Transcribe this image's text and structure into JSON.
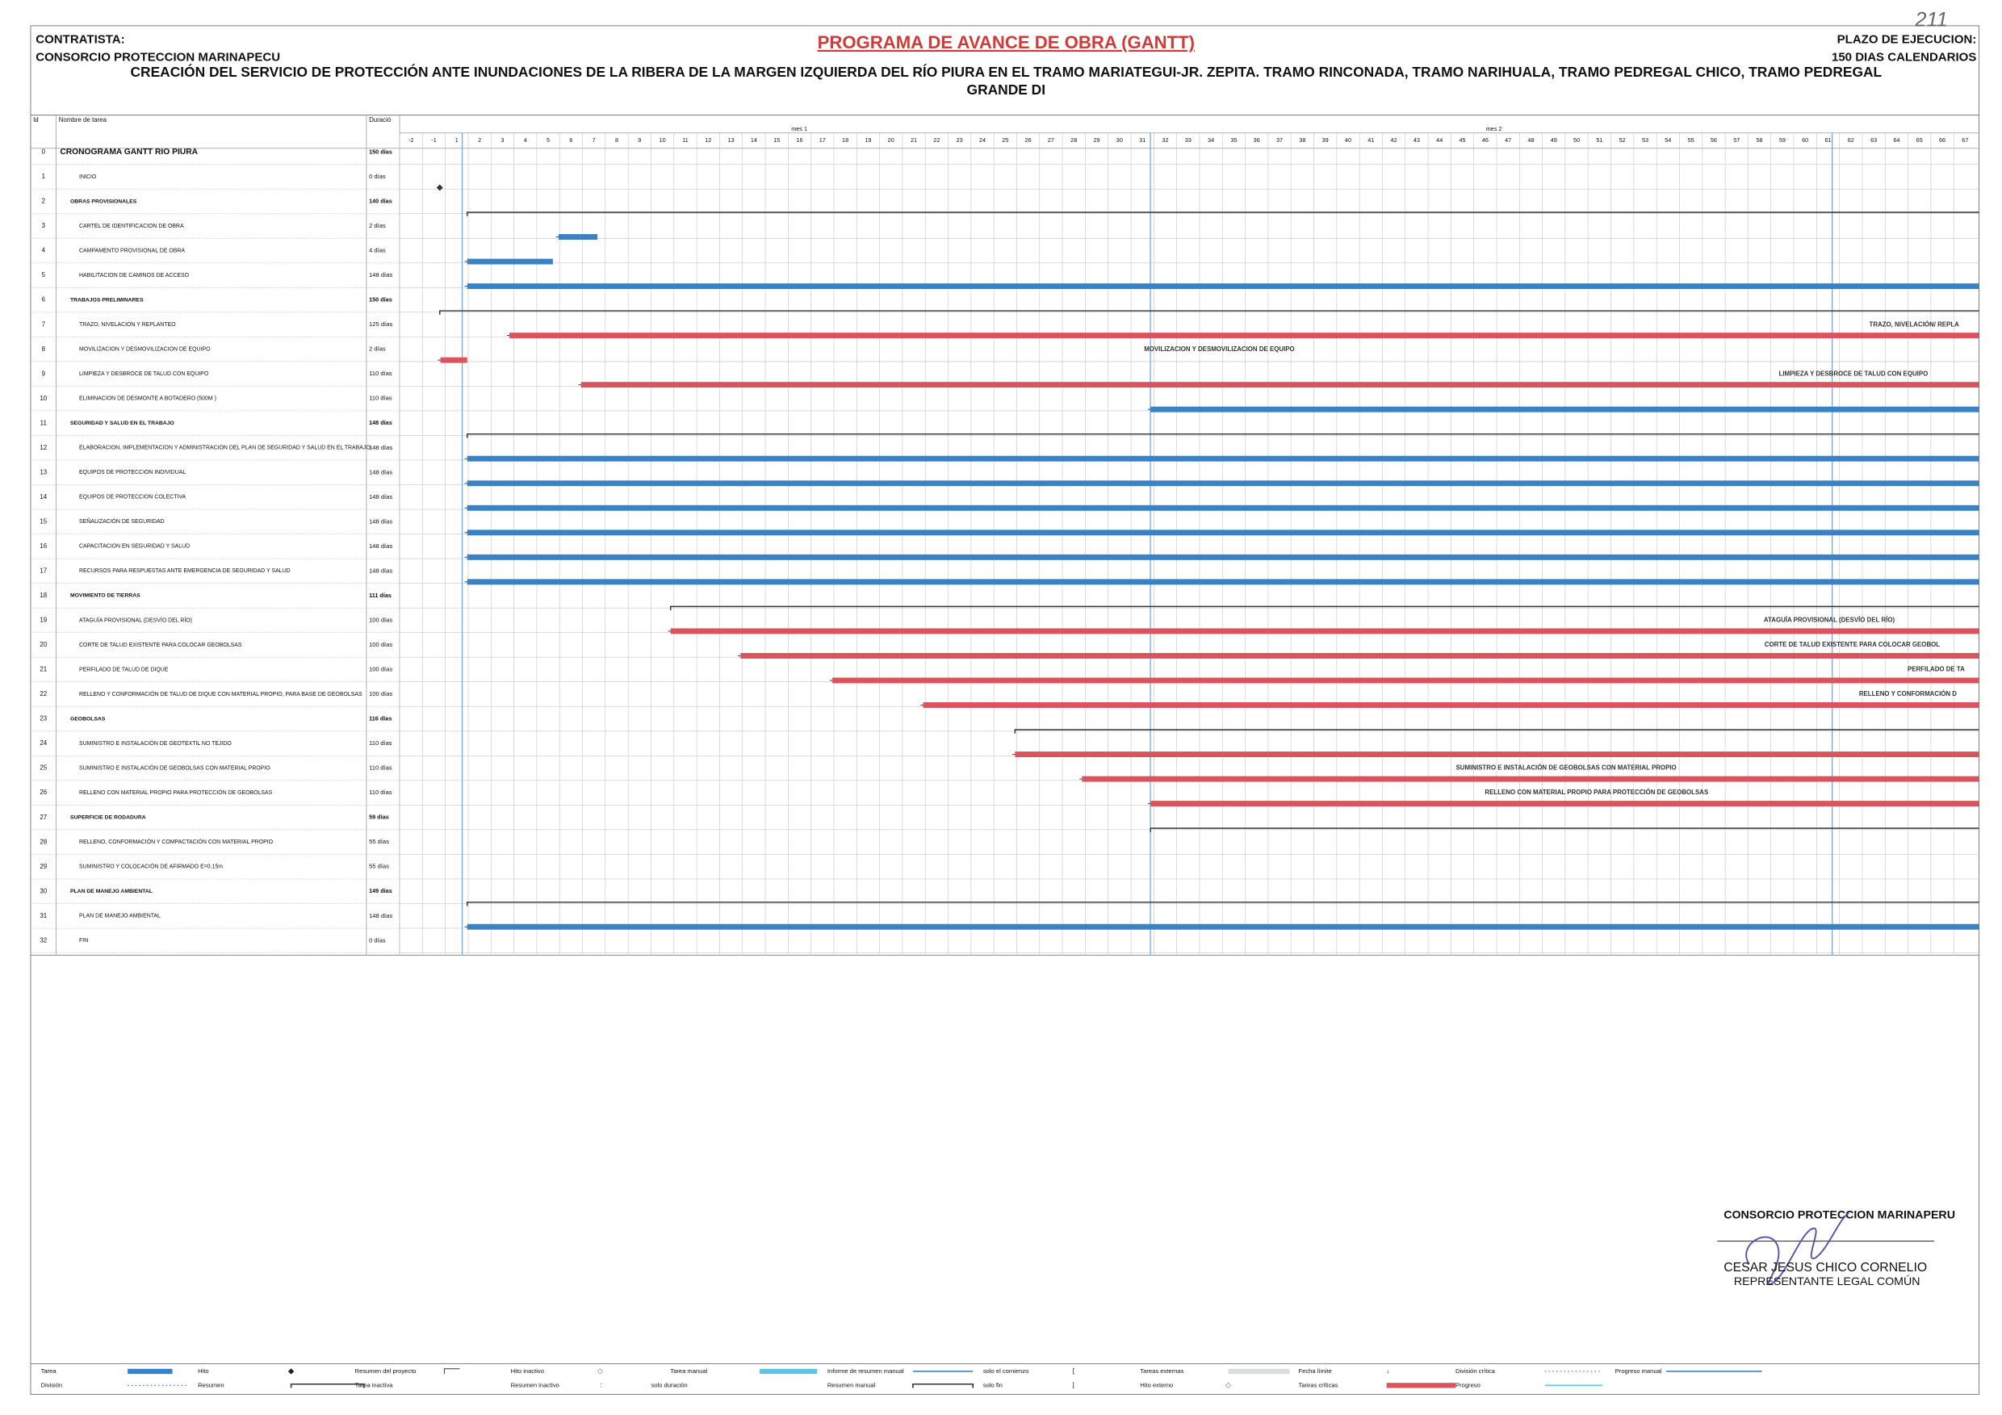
{
  "header": {
    "contractor_label": "CONTRATISTA:",
    "contractor": "CONSORCIO PROTECCION MARINAPECU",
    "title": "PROGRAMA DE AVANCE DE OBRA (GANTT)",
    "term_label": "PLAZO DE EJECUCION:",
    "term": "150 DIAS CALENDARIOS",
    "page_number": "211",
    "description": [
      "CREACIÓN DEL SERVICIO DE PROTECCIÓN ANTE INUNDACIONES DE LA RIBERA DE LA MARGEN IZQUIERDA DEL RÍO PIURA EN EL TRAMO MARIATEGUI-JR. ZEPITA. TRAMO RINCONADA, TRAMO NARIHUALA, TRAMO PEDREGAL CHICO, TRAMO PEDREGAL",
      "GRANDE DI"
    ]
  },
  "table": {
    "columns": [
      "Id",
      "Nombre de tarea",
      "Duració"
    ],
    "tasks": [
      {
        "id": "0",
        "name": "CRONOGRAMA GANTT RIO PIURA",
        "duration": "150 días",
        "summary": true
      },
      {
        "id": "1",
        "name": "INICIO",
        "duration": "0 días",
        "bar": {
          "start": 0.8,
          "end": 0.8,
          "kind": "milestone"
        }
      },
      {
        "id": "2",
        "name": "OBRAS PROVISIONALES",
        "duration": "140 días",
        "summary": true,
        "bar": {
          "start": 2,
          "end": 68.2,
          "kind": "summary"
        }
      },
      {
        "id": "3",
        "name": "CARTEL DE IDENTIFICACION DE OBRA",
        "duration": "2 días",
        "bar": {
          "start": 6,
          "end": 7.7,
          "kind": "task"
        }
      },
      {
        "id": "4",
        "name": "CAMPAMENTO PROVISIONAL DE OBRA",
        "duration": "4 días",
        "bar": {
          "start": 2,
          "end": 5.75,
          "kind": "task"
        }
      },
      {
        "id": "5",
        "name": "HABILITACION DE CAMINOS DE ACCESO",
        "duration": "148 días",
        "bar": {
          "start": 2,
          "end": 68.2,
          "kind": "task"
        }
      },
      {
        "id": "6",
        "name": "TRABAJOS PRELIMINARES",
        "duration": "150 días",
        "summary": true,
        "bar": {
          "start": 0.8,
          "end": 68.2,
          "kind": "summary"
        }
      },
      {
        "id": "7",
        "name": "TRAZO, NIVELACIÓN Y REPLANTEO",
        "duration": "125 días",
        "bar": {
          "start": 3.85,
          "end": 68.2,
          "kind": "critical",
          "label": "TRAZO, NIVELACIÓN/ REPLA"
        }
      },
      {
        "id": "8",
        "name": "MOVILIZACION Y DESMOVILIZACION DE EQUIPO",
        "duration": "2 días",
        "bar": {
          "start": 0.83,
          "end": 2,
          "kind": "critical",
          "label": "MOVILIZACION Y DESMOVILIZACION DE EQUIPO"
        }
      },
      {
        "id": "9",
        "name": "LIMPIEZA Y DESBROCE DE TALUD CON EQUIPO",
        "duration": "110 días",
        "bar": {
          "start": 6.98,
          "end": 68.2,
          "kind": "critical",
          "label": "LIMPIEZA Y DESBROCE DE TALUD CON EQUIPO"
        }
      },
      {
        "id": "10",
        "name": "ELIMINACION DE DESMONTE A BOTADERO (500M )",
        "duration": "110 días",
        "bar": {
          "start": 31.9,
          "end": 68.2,
          "kind": "task"
        }
      },
      {
        "id": "11",
        "name": "SEGURIDAD Y SALUD EN EL TRABAJO",
        "duration": "148 días",
        "summary": true,
        "bar": {
          "start": 2,
          "end": 68.2,
          "kind": "summary"
        }
      },
      {
        "id": "12",
        "name": "ELABORACION, IMPLEMENTACION Y ADMINISTRACION DEL PLAN DE SEGURIDAD Y SALUD EN EL TRABAJO",
        "duration": "148 días",
        "bar": {
          "start": 2,
          "end": 68.2,
          "kind": "task"
        }
      },
      {
        "id": "13",
        "name": "EQUIPOS DE PROTECCION INDIVIDUAL",
        "duration": "148 días",
        "bar": {
          "start": 2,
          "end": 68.2,
          "kind": "task"
        }
      },
      {
        "id": "14",
        "name": "EQUIPOS DE PROTECCION COLECTIVA",
        "duration": "148 días",
        "bar": {
          "start": 2,
          "end": 68.2,
          "kind": "task"
        }
      },
      {
        "id": "15",
        "name": "SEÑALIZACIÓN DE SEGURIDAD",
        "duration": "148 días",
        "bar": {
          "start": 2,
          "end": 68.2,
          "kind": "task"
        }
      },
      {
        "id": "16",
        "name": "CAPACITACION EN SEGURIDAD Y SALUD",
        "duration": "148 días",
        "bar": {
          "start": 2,
          "end": 68.2,
          "kind": "task"
        }
      },
      {
        "id": "17",
        "name": "RECURSOS PARA RESPUESTAS ANTE EMERGENCIA DE SEGURIDAD Y SALUD",
        "duration": "148 días",
        "bar": {
          "start": 2,
          "end": 68.2,
          "kind": "task"
        }
      },
      {
        "id": "18",
        "name": "MOVIMIENTO DE TIERRAS",
        "duration": "111 días",
        "summary": true,
        "bar": {
          "start": 10.9,
          "end": 68.2,
          "kind": "summary"
        }
      },
      {
        "id": "19",
        "name": "ATAGUÍA PROVISIONAL (DESVÍO DEL RÍO)",
        "duration": "100 días",
        "bar": {
          "start": 10.9,
          "end": 68.2,
          "kind": "critical",
          "label": "ATAGUÍA PROVISIONAL (DESVÍO DEL RÍO)"
        }
      },
      {
        "id": "20",
        "name": "CORTE DE TALUD EXISTENTE PARA COLOCAR GEOBOLSAS",
        "duration": "100 días",
        "bar": {
          "start": 13.96,
          "end": 68.2,
          "kind": "critical",
          "label": "CORTE DE TALUD EXISTENTE PARA COLOCAR GEOBOL"
        }
      },
      {
        "id": "21",
        "name": "PERFILADO DE TALUD DE DIQUE",
        "duration": "100 días",
        "bar": {
          "start": 17.98,
          "end": 68.2,
          "kind": "critical",
          "label": "PERFILADO DE TA"
        }
      },
      {
        "id": "22",
        "name": "RELLENO Y CONFORMACIÓN DE TALUD DE DIQUE CON MATERIAL PROPIO, PARA BASE DE GEOBOLSAS",
        "duration": "100 días",
        "bar": {
          "start": 21.95,
          "end": 68.2,
          "kind": "critical",
          "label": "RELLENO Y CONFORMACIÓN D"
        }
      },
      {
        "id": "23",
        "name": "GEOBOLSAS",
        "duration": "116 días",
        "summary": true,
        "bar": {
          "start": 25.97,
          "end": 68.2,
          "kind": "summary"
        }
      },
      {
        "id": "24",
        "name": "SUMINISTRO E INSTALACIÓN DE GEOTEXTIL NO TEJIDO",
        "duration": "110 días",
        "bar": {
          "start": 25.97,
          "end": 68.2,
          "kind": "critical"
        }
      },
      {
        "id": "25",
        "name": "SUMINISTRO E INSTALACIÓN DE GEOBOLSAS CON MATERIAL PROPIO",
        "duration": "110 días",
        "bar": {
          "start": 28.9,
          "end": 68.2,
          "kind": "critical",
          "label": "SUMINISTRO E INSTALACIÓN DE GEOBOLSAS CON MATERIAL PROPIO"
        }
      },
      {
        "id": "26",
        "name": "RELLENO CON MATERIAL PROPIO PARA PROTECCIÓN DE GEOBOLSAS",
        "duration": "110 días",
        "bar": {
          "start": 31.9,
          "end": 68.2,
          "kind": "critical",
          "label": "RELLENO CON MATERIAL PROPIO PARA PROTECCIÓN DE GEOBOLSAS"
        }
      },
      {
        "id": "27",
        "name": "SUPERFICIE DE RODADURA",
        "duration": "59 días",
        "summary": true,
        "bar": {
          "start": 31.9,
          "end": 68.2,
          "kind": "summary"
        }
      },
      {
        "id": "28",
        "name": "RELLENO, CONFORMACIÓN Y COMPACTACIÓN CON MATERIAL PROPIO",
        "duration": "55 días"
      },
      {
        "id": "29",
        "name": "SUMINISTRO Y COLOCACIÓN DE AFIRMADO E=0.15m",
        "duration": "55 días"
      },
      {
        "id": "30",
        "name": "PLAN DE MANEJO AMBIENTAL",
        "duration": "149 días",
        "summary": true,
        "bar": {
          "start": 2,
          "end": 68.2,
          "kind": "summary"
        }
      },
      {
        "id": "31",
        "name": "PLAN DE MANEJO AMBIENTAL",
        "duration": "148 días",
        "bar": {
          "start": 2,
          "end": 68.2,
          "kind": "task"
        }
      },
      {
        "id": "32",
        "name": "FIN",
        "duration": "0 días"
      }
    ]
  },
  "timeline": {
    "months": [
      "mes 1",
      "mes 2"
    ],
    "days": [
      -2,
      -1,
      1,
      2,
      3,
      4,
      5,
      6,
      7,
      8,
      9,
      10,
      11,
      12,
      13,
      14,
      15,
      16,
      17,
      18,
      19,
      20,
      21,
      22,
      23,
      24,
      25,
      26,
      27,
      28,
      29,
      30,
      31,
      32,
      33,
      34,
      35,
      36,
      37,
      38,
      39,
      40,
      41,
      42,
      43,
      44,
      45,
      46,
      47,
      48,
      49,
      50,
      51,
      52,
      53,
      54,
      55,
      56,
      57,
      58,
      59,
      60,
      61,
      62,
      63,
      64,
      65,
      66,
      67
    ]
  },
  "signature": {
    "company": "CONSORCIO PROTECCION MARINAPERU",
    "name": "CESAR JESUS CHICO CORNELIO",
    "role": "REPRESENTANTE LEGAL COMÚN"
  },
  "legend": [
    "Tarea",
    "Hito",
    "Resumen del proyecto",
    "Hito inactivo",
    "Tarea manual",
    "Informe de resumen manual",
    "solo el comienzo",
    "Tareas externas",
    "Fecha límite",
    "División crítica",
    "Progreso manual",
    "División",
    "Resumen",
    "Tarea inactiva",
    "Resumen inactivo",
    "solo duración",
    "Resumen manual",
    "solo fin",
    "Hito externo",
    "Tareas críticas",
    "Progreso"
  ]
}
